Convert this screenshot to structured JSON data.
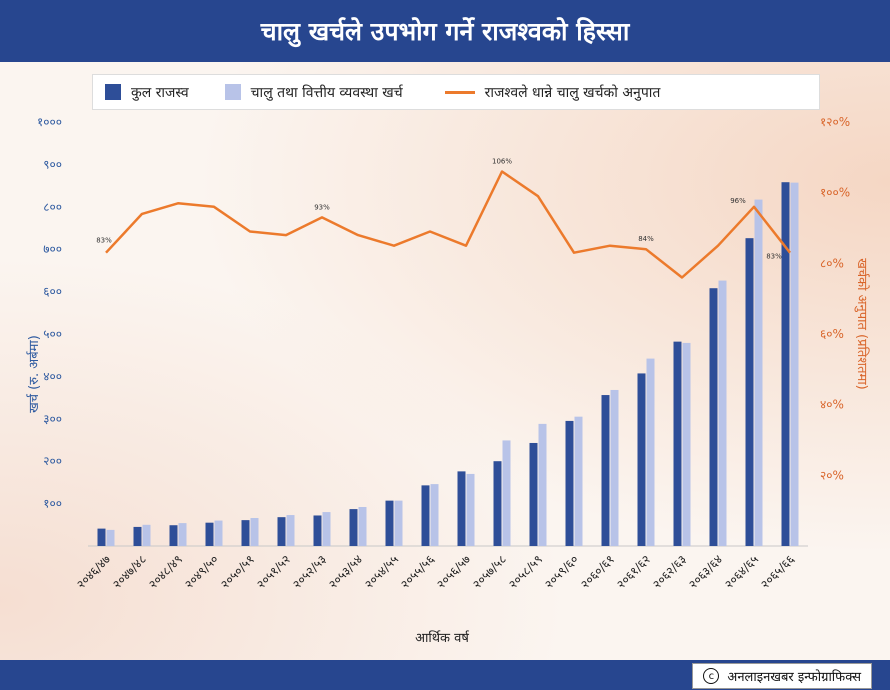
{
  "title": "चालु खर्चले उपभोग गर्ने राजश्वको हिस्सा",
  "credit": "अनलाइनखबर इन्फोग्राफिक्स",
  "colors": {
    "header": "#27468f",
    "revenue": "#2e4e98",
    "expense": "#b8c3e8",
    "ratio": "#ec7a2c",
    "leftAxis": "#2e5aa0",
    "rightAxis": "#d9652a"
  },
  "chart_data": {
    "type": "bar",
    "categories": [
      "२०४६/४७",
      "२०४७/४८",
      "२०४८/४९",
      "२०४९/५०",
      "२०५०/५१",
      "२०५१/५२",
      "२०५२/५३",
      "२०५३/५४",
      "२०५४/५५",
      "२०५५/५६",
      "२०५६/५७",
      "२०५७/५८",
      "२०५८/५९",
      "२०५९/६०",
      "२०६०/६१",
      "२०६१/६२",
      "२०६२/६३",
      "२०६३/६४",
      "२०६४/६५",
      "२०६५/६६"
    ],
    "series": [
      {
        "name": "कुल राजस्व",
        "values": [
          41,
          45,
          49,
          55,
          61,
          68,
          72,
          87,
          107,
          143,
          176,
          200,
          243,
          295,
          356,
          407,
          482,
          608,
          726,
          858
        ]
      },
      {
        "name": "चालु तथा वित्तीय व्यवस्था खर्च",
        "values": [
          38,
          50,
          54,
          60,
          66,
          73,
          80,
          92,
          107,
          146,
          170,
          249,
          288,
          305,
          368,
          442,
          479,
          626,
          817,
          857
        ]
      },
      {
        "name": "राजश्वले धान्ने चालु खर्चको अनुपात",
        "axis": "right",
        "values": [
          83,
          94,
          97,
          96,
          89,
          88,
          93,
          88,
          85,
          89,
          85,
          106,
          99,
          83,
          85,
          84,
          76,
          85,
          96,
          83
        ]
      }
    ],
    "data_labels": [
      {
        "index": 0,
        "text": "83%"
      },
      {
        "index": 6,
        "text": "93%"
      },
      {
        "index": 11,
        "text": "106%"
      },
      {
        "index": 15,
        "text": "84%"
      },
      {
        "index": 18,
        "text": "96%"
      },
      {
        "index": 19,
        "text": "83%"
      }
    ],
    "xlabel": "आर्थिक वर्ष",
    "ylabel": "खर्च (रु. अर्बमा)",
    "y2label": "खर्चको अनुपात (प्रतिशतमा)",
    "ylim": [
      0,
      1000
    ],
    "y2lim": [
      0,
      120
    ],
    "yticks": [
      "१००",
      "२००",
      "३००",
      "४००",
      "५००",
      "६००",
      "७००",
      "८००",
      "९००",
      "१०००"
    ],
    "y2ticks": [
      "२०%",
      "४०%",
      "६०%",
      "८०%",
      "१००%",
      "१२०%"
    ],
    "legend_position": "top"
  }
}
